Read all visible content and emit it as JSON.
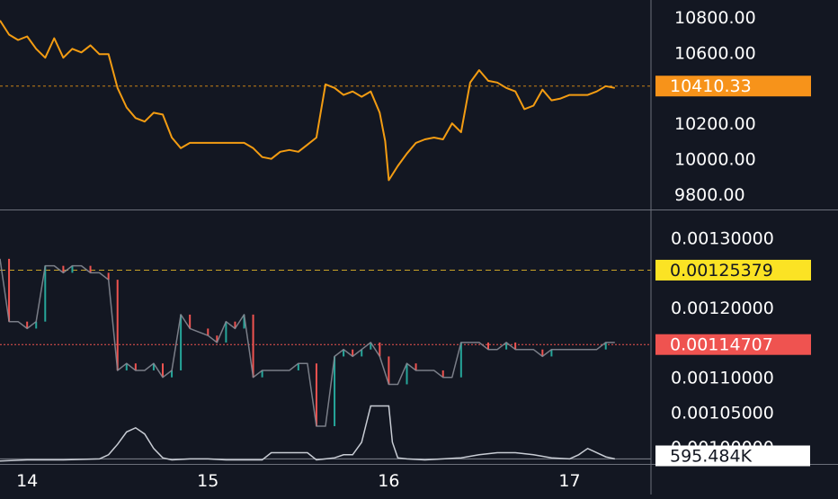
{
  "theme": {
    "background": "#131722",
    "price_line": "#f39c12",
    "axis_text": "#ffffff",
    "separator": "#6b6f7a",
    "ratio_up": "#26a69a",
    "ratio_down": "#ef5350",
    "ratio_neutral": "#868993",
    "volume_line": "#c8ccd4",
    "badge_orange": "#f7931a",
    "badge_yellow": "#fbe324",
    "badge_red": "#ef5350",
    "badge_white": "#ffffff"
  },
  "chart_data": [
    {
      "id": "price",
      "type": "line",
      "ylim": [
        9740,
        10870
      ],
      "y_ticks": [
        "10800.00",
        "10600.00",
        "10200.00",
        "10000.00",
        "9800.00"
      ],
      "y_tick_values": [
        10800,
        10600,
        10200,
        10000,
        9800
      ],
      "current_value_label": "10410.33",
      "current_value": 10410.33,
      "x": [
        13.85,
        13.9,
        13.95,
        14.0,
        14.05,
        14.1,
        14.15,
        14.2,
        14.25,
        14.3,
        14.35,
        14.4,
        14.45,
        14.5,
        14.55,
        14.6,
        14.65,
        14.7,
        14.75,
        14.8,
        14.85,
        14.9,
        15.0,
        15.1,
        15.2,
        15.25,
        15.3,
        15.35,
        15.4,
        15.45,
        15.5,
        15.55,
        15.6,
        15.65,
        15.7,
        15.75,
        15.8,
        15.85,
        15.9,
        15.95,
        15.98,
        16.0,
        16.05,
        16.1,
        16.15,
        16.2,
        16.25,
        16.3,
        16.35,
        16.4,
        16.45,
        16.5,
        16.55,
        16.6,
        16.65,
        16.7,
        16.75,
        16.8,
        16.85,
        16.9,
        16.95,
        17.0,
        17.05,
        17.1,
        17.15,
        17.2,
        17.25
      ],
      "values": [
        10780,
        10700,
        10670,
        10690,
        10620,
        10570,
        10680,
        10570,
        10620,
        10600,
        10640,
        10590,
        10590,
        10400,
        10290,
        10230,
        10210,
        10260,
        10250,
        10120,
        10060,
        10090,
        10090,
        10090,
        10090,
        10060,
        10010,
        10000,
        10040,
        10050,
        10040,
        10080,
        10120,
        10420,
        10400,
        10360,
        10380,
        10350,
        10380,
        10260,
        10100,
        9880,
        9960,
        10030,
        10090,
        10110,
        10120,
        10110,
        10200,
        10150,
        10430,
        10500,
        10440,
        10430,
        10400,
        10380,
        10280,
        10300,
        10390,
        10330,
        10340,
        10360,
        10360,
        10360,
        10380,
        10410,
        10400
      ]
    },
    {
      "id": "ratio",
      "type": "line",
      "ylim": [
        0.00099,
        0.001315
      ],
      "y_ticks": [
        "0.00130000",
        "0.00120000",
        "0.00110000",
        "0.00105000",
        "0.00100000"
      ],
      "y_tick_values": [
        0.0013,
        0.0012,
        0.0011,
        0.00105,
        0.001
      ],
      "high_value_label": "0.00125379",
      "high_value": 0.00125379,
      "current_value_label": "0.00114707",
      "current_value": 0.00114707,
      "x": [
        13.85,
        13.9,
        13.95,
        14.0,
        14.05,
        14.1,
        14.15,
        14.2,
        14.25,
        14.3,
        14.35,
        14.4,
        14.45,
        14.5,
        14.55,
        14.6,
        14.65,
        14.7,
        14.75,
        14.8,
        14.85,
        14.9,
        15.0,
        15.05,
        15.1,
        15.15,
        15.2,
        15.25,
        15.3,
        15.35,
        15.4,
        15.45,
        15.5,
        15.55,
        15.6,
        15.65,
        15.7,
        15.75,
        15.8,
        15.85,
        15.9,
        15.95,
        16.0,
        16.05,
        16.1,
        16.15,
        16.2,
        16.25,
        16.3,
        16.35,
        16.4,
        16.45,
        16.5,
        16.55,
        16.6,
        16.65,
        16.7,
        16.75,
        16.8,
        16.85,
        16.9,
        16.95,
        17.0,
        17.05,
        17.1,
        17.15,
        17.2,
        17.25
      ],
      "values": [
        0.00127,
        0.00118,
        0.00118,
        0.00117,
        0.00118,
        0.00126,
        0.00126,
        0.00125,
        0.00126,
        0.00126,
        0.00125,
        0.00125,
        0.00124,
        0.00111,
        0.00112,
        0.00111,
        0.00111,
        0.00112,
        0.0011,
        0.00111,
        0.00119,
        0.00117,
        0.00116,
        0.00115,
        0.00118,
        0.00117,
        0.00119,
        0.0011,
        0.00111,
        0.00111,
        0.00111,
        0.00111,
        0.00112,
        0.00112,
        0.00103,
        0.00103,
        0.00113,
        0.00114,
        0.00113,
        0.00114,
        0.00115,
        0.00113,
        0.00109,
        0.00109,
        0.00112,
        0.00111,
        0.00111,
        0.00111,
        0.0011,
        0.0011,
        0.00115,
        0.00115,
        0.00115,
        0.00114,
        0.00114,
        0.00115,
        0.00114,
        0.00114,
        0.00114,
        0.00113,
        0.00114,
        0.00114,
        0.00114,
        0.00114,
        0.00114,
        0.00114,
        0.00115,
        0.00115
      ]
    },
    {
      "id": "volume",
      "type": "area",
      "current_value_label": "595.484K",
      "x": [
        13.85,
        14.0,
        14.2,
        14.4,
        14.45,
        14.5,
        14.55,
        14.6,
        14.65,
        14.7,
        14.75,
        14.8,
        14.9,
        15.0,
        15.1,
        15.2,
        15.3,
        15.35,
        15.4,
        15.5,
        15.55,
        15.6,
        15.65,
        15.7,
        15.75,
        15.8,
        15.85,
        15.9,
        15.95,
        16.0,
        16.02,
        16.05,
        16.1,
        16.2,
        16.3,
        16.4,
        16.5,
        16.6,
        16.7,
        16.8,
        16.9,
        17.0,
        17.05,
        17.1,
        17.2,
        17.25
      ],
      "values": [
        2,
        3,
        3,
        4,
        8,
        18,
        30,
        34,
        28,
        14,
        5,
        3,
        4,
        4,
        3,
        3,
        3,
        10,
        10,
        10,
        10,
        3,
        4,
        5,
        8,
        8,
        20,
        55,
        55,
        55,
        20,
        5,
        4,
        3,
        4,
        5,
        8,
        10,
        10,
        8,
        5,
        4,
        8,
        14,
        6,
        4
      ],
      "ylim": [
        0,
        65
      ]
    }
  ],
  "x_axis": {
    "ticks": [
      "14",
      "15",
      "16",
      "17"
    ],
    "tick_values": [
      14,
      15,
      16,
      17
    ],
    "xlim": [
      13.85,
      17.45
    ]
  }
}
